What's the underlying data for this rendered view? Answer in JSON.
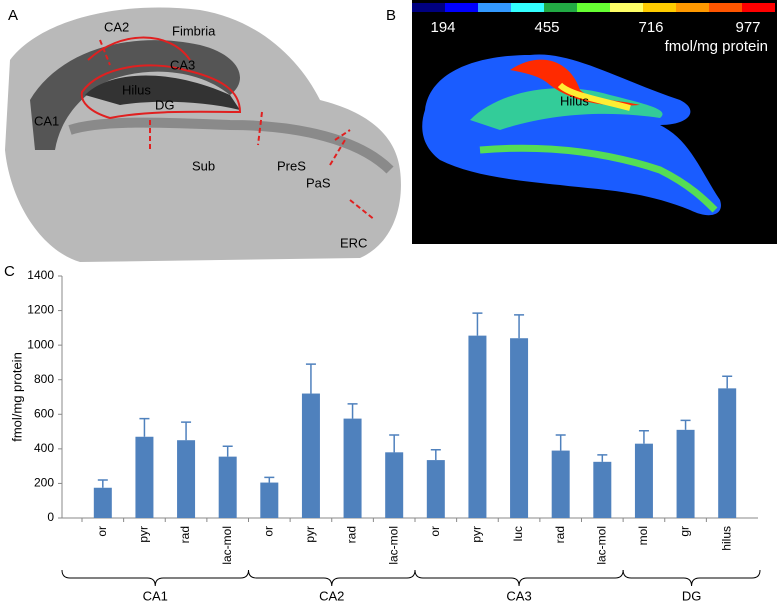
{
  "panel_a": {
    "label": "A",
    "regions": [
      "CA2",
      "Fimbria",
      "CA3",
      "Hilus",
      "DG",
      "CA1",
      "Sub",
      "PreS",
      "PaS",
      "ERC"
    ]
  },
  "panel_b": {
    "label": "B",
    "colorbar_ticks": [
      194,
      455,
      716,
      977
    ],
    "unit": "fmol/mg protein",
    "region": "Hilus"
  },
  "chart_data": {
    "type": "bar",
    "panel_label": "C",
    "ylabel": "fmol/mg protein",
    "categories": [
      "or",
      "pyr",
      "rad",
      "lac-mol",
      "or",
      "pyr",
      "rad",
      "lac-mol",
      "or",
      "pyr",
      "luc",
      "rad",
      "lac-mol",
      "mol",
      "gr",
      "hilus"
    ],
    "category_groups": [
      "CA1",
      "CA1",
      "CA1",
      "CA1",
      "CA2",
      "CA2",
      "CA2",
      "CA2",
      "CA3",
      "CA3",
      "CA3",
      "CA3",
      "CA3",
      "DG",
      "DG",
      "DG"
    ],
    "values": [
      175,
      470,
      450,
      355,
      205,
      720,
      575,
      380,
      335,
      1055,
      1040,
      390,
      325,
      430,
      510,
      750
    ],
    "errors": [
      45,
      105,
      105,
      60,
      30,
      170,
      85,
      100,
      60,
      130,
      135,
      90,
      40,
      75,
      55,
      70
    ],
    "color": "#4f81bd",
    "ylim": [
      0,
      1400
    ],
    "yticks": [
      0,
      200,
      400,
      600,
      800,
      1000,
      1200,
      1400
    ]
  }
}
